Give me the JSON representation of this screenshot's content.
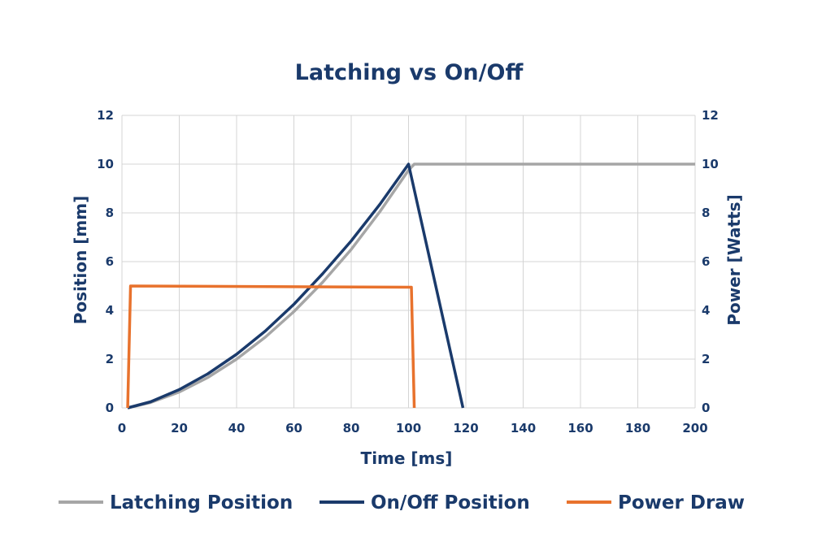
{
  "chart_data": {
    "type": "line",
    "title": "Latching vs On/Off",
    "xlabel": "Time [ms]",
    "ylabel_left": "Position [mm]",
    "ylabel_right": "Power [Watts]",
    "xlim": [
      0,
      200
    ],
    "ylim_left": [
      0,
      12
    ],
    "ylim_right": [
      0,
      12
    ],
    "x_ticks": [
      "0",
      "20",
      "40",
      "60",
      "80",
      "100",
      "120",
      "140",
      "160",
      "180",
      "200"
    ],
    "y_ticks_left": [
      "0",
      "2",
      "4",
      "6",
      "8",
      "10",
      "12"
    ],
    "y_ticks_right": [
      "0",
      "2",
      "4",
      "6",
      "8",
      "10",
      "12"
    ],
    "grid": true,
    "legend_position": "bottom",
    "series": [
      {
        "name": "Latching Position",
        "axis": "left",
        "color": "#a6a6a6",
        "x": [
          2,
          10,
          20,
          30,
          40,
          50,
          60,
          70,
          80,
          90,
          100,
          102,
          150,
          200
        ],
        "y": [
          0,
          0.22,
          0.65,
          1.25,
          2.0,
          2.9,
          3.95,
          5.15,
          6.5,
          8.05,
          9.75,
          10,
          10,
          10
        ]
      },
      {
        "name": "On/Off Position",
        "axis": "left",
        "color": "#1a3a6b",
        "x": [
          2,
          10,
          20,
          30,
          40,
          50,
          60,
          70,
          80,
          90,
          100,
          119
        ],
        "y": [
          0,
          0.25,
          0.75,
          1.4,
          2.2,
          3.15,
          4.25,
          5.5,
          6.85,
          8.35,
          10,
          0
        ]
      },
      {
        "name": "Power Draw",
        "axis": "right",
        "color": "#e8722d",
        "x": [
          2,
          3,
          101,
          102
        ],
        "y": [
          0,
          5,
          4.95,
          0
        ]
      }
    ]
  }
}
